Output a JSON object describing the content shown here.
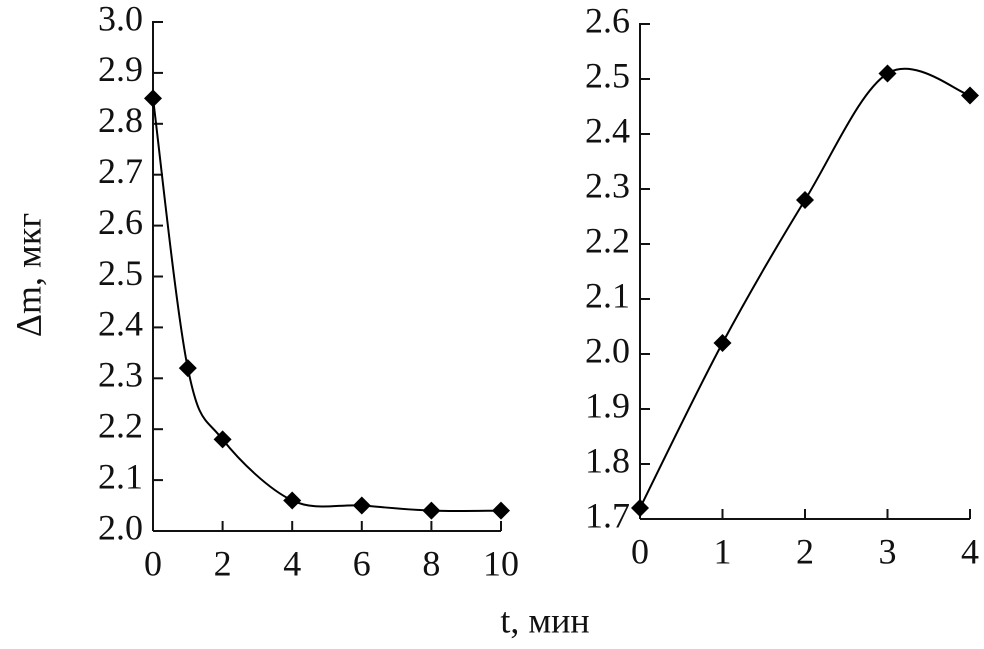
{
  "chart_data": [
    {
      "type": "line",
      "x": [
        0,
        1,
        2,
        4,
        6,
        8,
        10
      ],
      "values": [
        2.85,
        2.32,
        2.18,
        2.06,
        2.05,
        2.04,
        2.04
      ],
      "color": "#000000",
      "xlim": [
        0,
        10
      ],
      "xticks": [
        0,
        2,
        4,
        6,
        8,
        10
      ],
      "ylim": [
        2.0,
        3.0
      ],
      "yticks": [
        {
          "value": 2.0,
          "label": "2.0"
        },
        2.1,
        2.2,
        2.3,
        2.4,
        2.5,
        2.6,
        2.7,
        2.8,
        2.9,
        {
          "value": 3.0,
          "label": "3.0"
        }
      ]
    },
    {
      "type": "line",
      "x": [
        0,
        1,
        2,
        3,
        4
      ],
      "values": [
        1.72,
        2.02,
        2.28,
        2.51,
        2.47
      ],
      "color": "#000000",
      "xlim": [
        0,
        4
      ],
      "xticks": [
        0,
        1,
        2,
        3,
        4
      ],
      "ylim": [
        1.7,
        2.6
      ],
      "yticks": [
        1.7,
        1.8,
        1.9,
        {
          "value": 2.0,
          "label": "2.0"
        },
        2.1,
        2.2,
        2.3,
        2.4,
        2.5,
        2.6
      ]
    }
  ],
  "ylabel": "Δm, мкг",
  "xlabel": "t, мин"
}
